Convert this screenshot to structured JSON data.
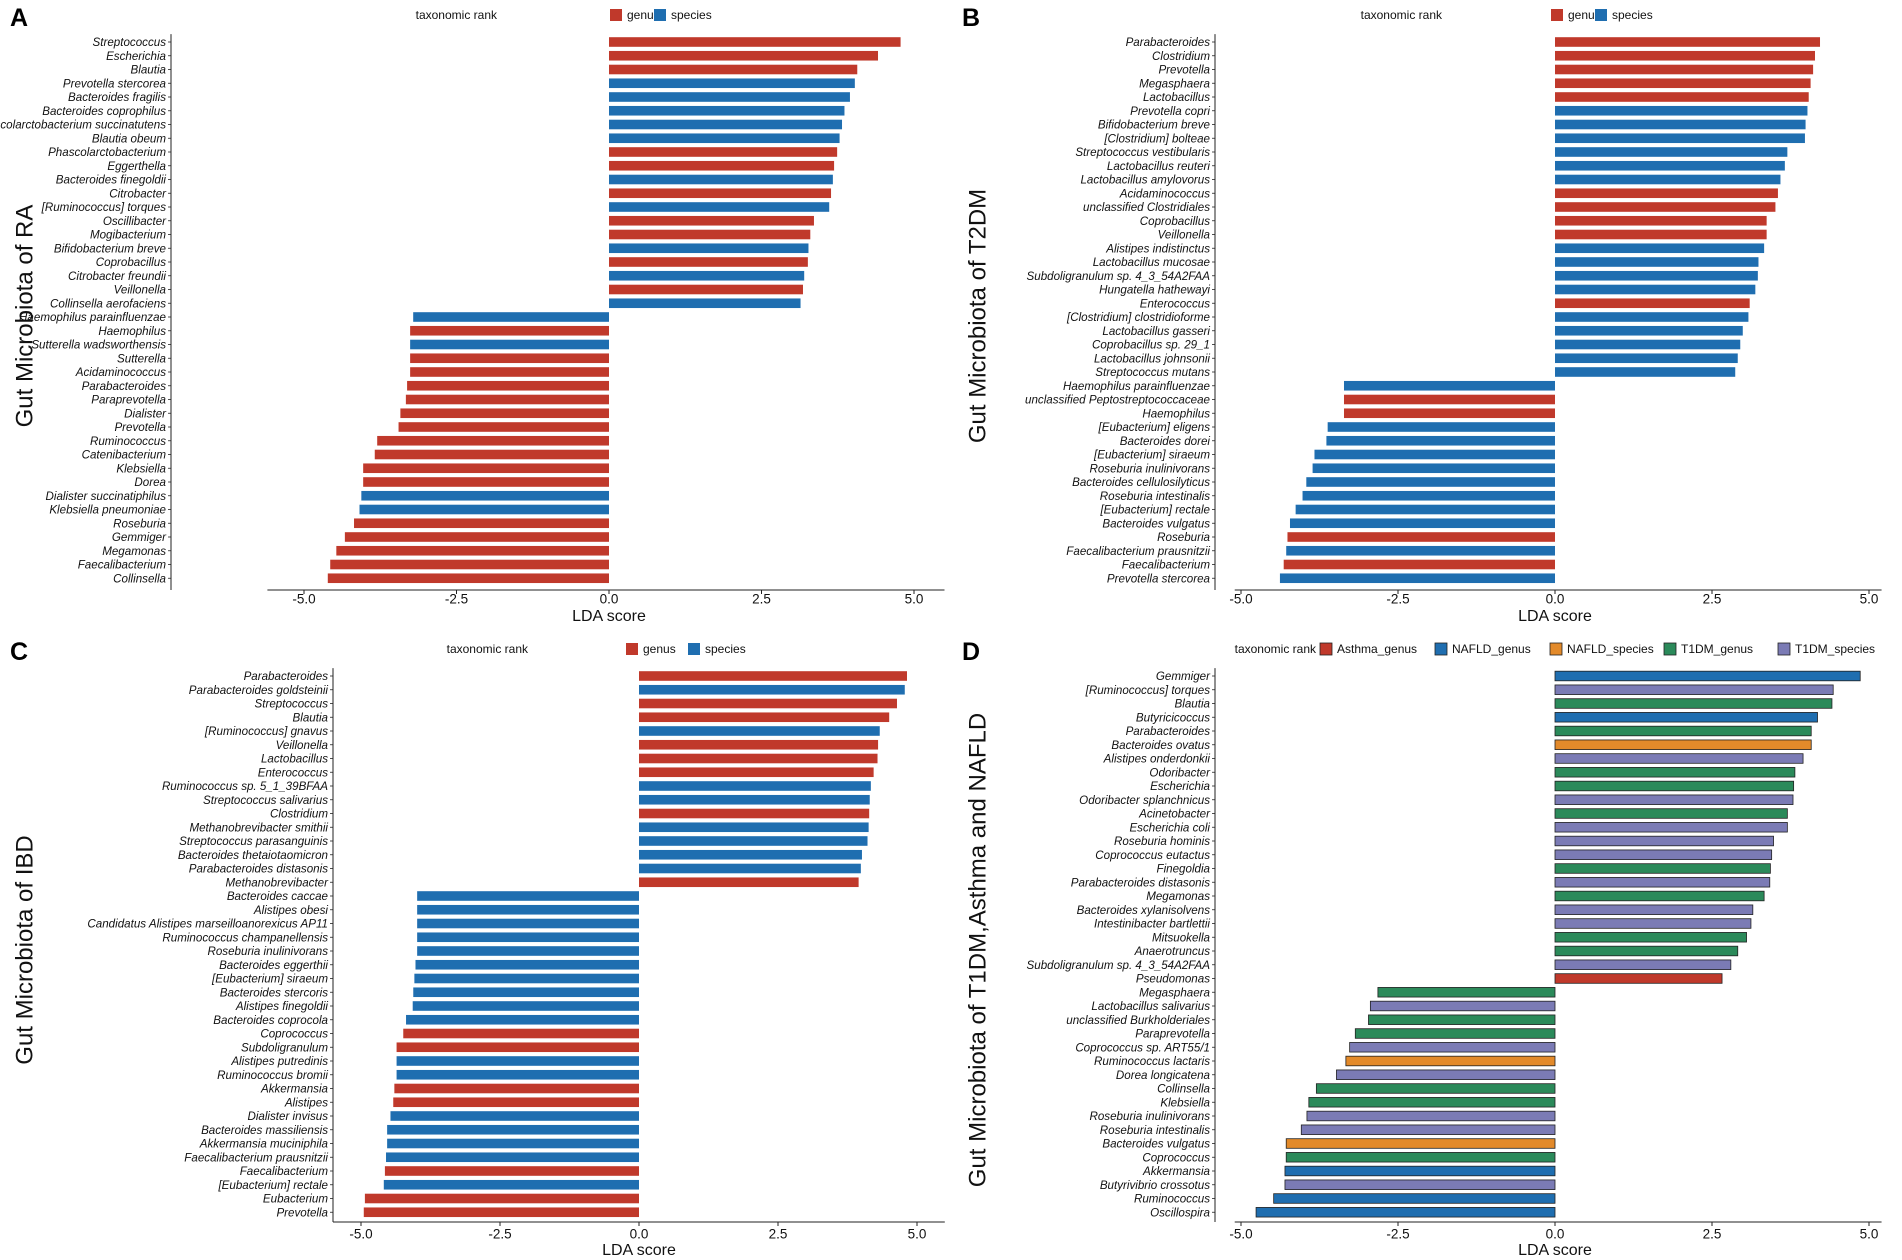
{
  "figure": {
    "colors": {
      "genus": "#c0392b",
      "species": "#1f6eb0",
      "Asthma_genus": "#c0392b",
      "NAFLD_genus": "#1f6eb0",
      "NAFLD_species": "#e38a2a",
      "T1DM_genus": "#2b8a5a",
      "T1DM_species": "#7b7bb5"
    }
  },
  "chart_data": [
    {
      "panel": "A",
      "type": "bar",
      "orientation": "horizontal",
      "ylabel": "Gut Microbiota of RA",
      "xlabel": "LDA score",
      "xlim": [
        -5.6,
        5.5
      ],
      "xticks": [
        -5.0,
        -2.5,
        0.0,
        2.5,
        5.0
      ],
      "xtick_labels": [
        "-5.0",
        "-2.5",
        "0.0",
        "2.5",
        "5.0"
      ],
      "legend_title": "taxonomic rank",
      "legend_items": [
        "genus",
        "species"
      ],
      "categories": [
        "Streptococcus",
        "Escherichia",
        "Blautia",
        "Prevotella stercorea",
        "Bacteroides fragilis",
        "Bacteroides coprophilus",
        "Phascolarctobacterium succinatutens",
        "Blautia obeum",
        "Phascolarctobacterium",
        "Eggerthella",
        "Bacteroides finegoldii",
        "Citrobacter",
        "[Ruminococcus] torques",
        "Oscillibacter",
        "Mogibacterium",
        "Bifidobacterium breve",
        "Coprobacillus",
        "Citrobacter freundii",
        "Veillonella",
        "Collinsella aerofaciens",
        "Haemophilus parainfluenzae",
        "Haemophilus",
        "Sutterella wadsworthensis",
        "Sutterella",
        "Acidaminococcus",
        "Parabacteroides",
        "Paraprevotella",
        "Dialister",
        "Prevotella",
        "Ruminococcus",
        "Catenibacterium",
        "Klebsiella",
        "Dorea",
        "Dialister succinatiphilus",
        "Klebsiella pneumoniae",
        "Roseburia",
        "Gemmiger",
        "Megamonas",
        "Faecalibacterium",
        "Collinsella"
      ],
      "values": [
        4.78,
        4.41,
        4.07,
        4.03,
        3.95,
        3.86,
        3.82,
        3.78,
        3.74,
        3.69,
        3.67,
        3.64,
        3.61,
        3.36,
        3.3,
        3.27,
        3.26,
        3.2,
        3.18,
        3.14,
        -3.21,
        -3.26,
        -3.26,
        -3.26,
        -3.26,
        -3.31,
        -3.33,
        -3.42,
        -3.45,
        -3.8,
        -3.84,
        -4.03,
        -4.03,
        -4.06,
        -4.09,
        -4.18,
        -4.33,
        -4.47,
        -4.57,
        -4.61
      ],
      "groups": [
        "genus",
        "genus",
        "genus",
        "species",
        "species",
        "species",
        "species",
        "species",
        "genus",
        "genus",
        "species",
        "genus",
        "species",
        "genus",
        "genus",
        "species",
        "genus",
        "species",
        "genus",
        "species",
        "species",
        "genus",
        "species",
        "genus",
        "genus",
        "genus",
        "genus",
        "genus",
        "genus",
        "genus",
        "genus",
        "genus",
        "genus",
        "species",
        "species",
        "genus",
        "genus",
        "genus",
        "genus",
        "genus"
      ]
    },
    {
      "panel": "B",
      "type": "bar",
      "orientation": "horizontal",
      "ylabel": "Gut Microbiota of T2DM",
      "xlabel": "LDA score",
      "xlim": [
        -5.1,
        5.2
      ],
      "xticks": [
        -5.0,
        -2.5,
        0.0,
        2.5,
        5.0
      ],
      "xtick_labels": [
        "-5.0",
        "-2.5",
        "0.0",
        "2.5",
        "5.0"
      ],
      "legend_title": "taxonomic rank",
      "legend_items": [
        "genus",
        "species"
      ],
      "categories": [
        "Parabacteroides",
        "Clostridium",
        "Prevotella",
        "Megasphaera",
        "Lactobacillus",
        "Prevotella copri",
        "Bifidobacterium breve",
        "[Clostridium] bolteae",
        "Streptococcus vestibularis",
        "Lactobacillus reuteri",
        "Lactobacillus amylovorus",
        "Acidaminococcus",
        "unclassified Clostridiales",
        "Coprobacillus",
        "Veillonella",
        "Alistipes indistinctus",
        "Lactobacillus mucosae",
        "Subdoligranulum sp. 4_3_54A2FAA",
        "Hungatella hathewayi",
        "Enterococcus",
        "[Clostridium] clostridioforme",
        "Lactobacillus gasseri",
        "Coprobacillus sp. 29_1",
        "Lactobacillus johnsonii",
        "Streptococcus mutans",
        "Haemophilus parainfluenzae",
        "unclassified Peptostreptococcaceae",
        "Haemophilus",
        "[Eubacterium] eligens",
        "Bacteroides dorei",
        "[Eubacterium] siraeum",
        "Roseburia inulinivorans",
        "Bacteroides cellulosilyticus",
        "Roseburia intestinalis",
        "[Eubacterium] rectale",
        "Bacteroides vulgatus",
        "Roseburia",
        "Faecalibacterium prausnitzii",
        "Faecalibacterium",
        "Prevotella stercorea"
      ],
      "values": [
        4.22,
        4.14,
        4.11,
        4.07,
        4.04,
        4.02,
        3.99,
        3.98,
        3.7,
        3.66,
        3.59,
        3.55,
        3.51,
        3.37,
        3.37,
        3.33,
        3.24,
        3.23,
        3.19,
        3.1,
        3.08,
        2.99,
        2.95,
        2.91,
        2.87,
        -3.36,
        -3.36,
        -3.36,
        -3.62,
        -3.64,
        -3.83,
        -3.86,
        -3.96,
        -4.02,
        -4.13,
        -4.22,
        -4.26,
        -4.28,
        -4.32,
        -4.38
      ],
      "groups": [
        "genus",
        "genus",
        "genus",
        "genus",
        "genus",
        "species",
        "species",
        "species",
        "species",
        "species",
        "species",
        "genus",
        "genus",
        "genus",
        "genus",
        "species",
        "species",
        "species",
        "species",
        "genus",
        "species",
        "species",
        "species",
        "species",
        "species",
        "species",
        "genus",
        "genus",
        "species",
        "species",
        "species",
        "species",
        "species",
        "species",
        "species",
        "species",
        "genus",
        "species",
        "genus",
        "species"
      ]
    },
    {
      "panel": "C",
      "type": "bar",
      "orientation": "horizontal",
      "ylabel": "Gut Microbiota of IBD",
      "xlabel": "LDA score",
      "xlim": [
        -5.6,
        5.5
      ],
      "xticks": [
        -5.0,
        -2.5,
        0.0,
        2.5,
        5.0
      ],
      "xtick_labels": [
        "-5.0",
        "-2.5",
        "0.0",
        "2.5",
        "5.0"
      ],
      "legend_title": "taxonomic rank",
      "legend_items": [
        "genus",
        "species"
      ],
      "categories": [
        "Parabacteroides",
        "Parabacteroides goldsteinii",
        "Streptococcus",
        "Blautia",
        "[Ruminococcus] gnavus",
        "Veillonella",
        "Lactobacillus",
        "Enterococcus",
        "Ruminococcus sp. 5_1_39BFAA",
        "Streptococcus salivarius",
        "Clostridium",
        "Methanobrevibacter smithii",
        "Streptococcus parasanguinis",
        "Bacteroides thetaiotaomicron",
        "Parabacteroides distasonis",
        "Methanobrevibacter",
        "Bacteroides caccae",
        "Alistipes obesi",
        "Candidatus Alistipes marseilloanorexicus AP11",
        "Ruminococcus champanellensis",
        "Roseburia inulinivorans",
        "Bacteroides eggerthii",
        "[Eubacterium] siraeum",
        "Bacteroides stercoris",
        "Alistipes finegoldii",
        "Bacteroides coprocola",
        "Coprococcus",
        "Subdoligranulum",
        "Alistipes putredinis",
        "Ruminococcus bromii",
        "Akkermansia",
        "Alistipes",
        "Dialister invisus",
        "Bacteroides massiliensis",
        "Akkermansia muciniphila",
        "Faecalibacterium prausnitzii",
        "Faecalibacterium",
        "[Eubacterium] rectale",
        "Eubacterium",
        "Prevotella"
      ],
      "values": [
        4.82,
        4.78,
        4.64,
        4.5,
        4.33,
        4.3,
        4.29,
        4.22,
        4.17,
        4.15,
        4.14,
        4.13,
        4.11,
        4.01,
        3.99,
        3.95,
        -3.99,
        -3.99,
        -3.99,
        -3.99,
        -3.99,
        -4.02,
        -4.04,
        -4.06,
        -4.07,
        -4.19,
        -4.24,
        -4.36,
        -4.36,
        -4.36,
        -4.4,
        -4.42,
        -4.47,
        -4.53,
        -4.53,
        -4.55,
        -4.57,
        -4.59,
        -4.93,
        -4.95
      ],
      "groups": [
        "genus",
        "species",
        "genus",
        "genus",
        "species",
        "genus",
        "genus",
        "genus",
        "species",
        "species",
        "genus",
        "species",
        "species",
        "species",
        "species",
        "genus",
        "species",
        "species",
        "species",
        "species",
        "species",
        "species",
        "species",
        "species",
        "species",
        "species",
        "genus",
        "genus",
        "species",
        "species",
        "genus",
        "genus",
        "species",
        "species",
        "species",
        "species",
        "genus",
        "species",
        "genus",
        "genus"
      ]
    },
    {
      "panel": "D",
      "type": "bar",
      "orientation": "horizontal",
      "ylabel": "Gut Microbiota of T1DM,Asthma and NAFLD",
      "xlabel": "LDA score",
      "xlim": [
        -5.1,
        5.2
      ],
      "xticks": [
        -5.0,
        -2.5,
        0.0,
        2.5,
        5.0
      ],
      "xtick_labels": [
        "-5.0",
        "-2.5",
        "0.0",
        "2.5",
        "5.0"
      ],
      "legend_title": "taxonomic rank",
      "legend_items": [
        "Asthma_genus",
        "NAFLD_genus",
        "NAFLD_species",
        "T1DM_genus",
        "T1DM_species"
      ],
      "categories": [
        "Gemmiger",
        "[Ruminococcus] torques",
        "Blautia",
        "Butyricicoccus",
        "Parabacteroides",
        "Bacteroides ovatus",
        "Alistipes onderdonkii",
        "Odoribacter",
        "Escherichia",
        "Odoribacter splanchnicus",
        "Acinetobacter",
        "Escherichia coli",
        "Roseburia hominis",
        "Coprococcus eutactus",
        "Finegoldia",
        "Parabacteroides distasonis",
        "Megamonas",
        "Bacteroides xylanisolvens",
        "Intestinibacter bartlettii",
        "Mitsuokella",
        "Anaerotruncus",
        "Subdoligranulum sp. 4_3_54A2FAA",
        "Pseudomonas",
        "Megasphaera",
        "Lactobacillus salivarius",
        "unclassified Burkholderiales",
        "Paraprevotella",
        "Coprococcus sp. ART55/1",
        "Ruminococcus lactaris",
        "Dorea longicatena",
        "Collinsella",
        "Klebsiella",
        "Roseburia inulinivorans",
        "Roseburia intestinalis",
        "Bacteroides vulgatus",
        "Coprococcus",
        "Akkermansia",
        "Butyrivibrio crossotus",
        "Ruminococcus",
        "Oscillospira"
      ],
      "values": [
        4.86,
        4.43,
        4.41,
        4.18,
        4.08,
        4.08,
        3.95,
        3.82,
        3.8,
        3.79,
        3.7,
        3.7,
        3.48,
        3.45,
        3.43,
        3.42,
        3.33,
        3.15,
        3.12,
        3.05,
        2.91,
        2.8,
        2.66,
        -2.82,
        -2.94,
        -2.97,
        -3.18,
        -3.27,
        -3.33,
        -3.48,
        -3.8,
        -3.92,
        -3.95,
        -4.04,
        -4.28,
        -4.28,
        -4.3,
        -4.3,
        -4.48,
        -4.76
      ],
      "groups": [
        "NAFLD_genus",
        "T1DM_species",
        "T1DM_genus",
        "NAFLD_genus",
        "T1DM_genus",
        "NAFLD_species",
        "T1DM_species",
        "T1DM_genus",
        "T1DM_genus",
        "T1DM_species",
        "T1DM_genus",
        "T1DM_species",
        "T1DM_species",
        "T1DM_species",
        "T1DM_genus",
        "T1DM_species",
        "T1DM_genus",
        "T1DM_species",
        "T1DM_species",
        "T1DM_genus",
        "T1DM_genus",
        "T1DM_species",
        "Asthma_genus",
        "T1DM_genus",
        "T1DM_species",
        "T1DM_genus",
        "T1DM_genus",
        "T1DM_species",
        "NAFLD_species",
        "T1DM_species",
        "T1DM_genus",
        "T1DM_genus",
        "T1DM_species",
        "T1DM_species",
        "NAFLD_species",
        "T1DM_genus",
        "NAFLD_genus",
        "T1DM_species",
        "NAFLD_genus",
        "NAFLD_genus"
      ]
    }
  ]
}
